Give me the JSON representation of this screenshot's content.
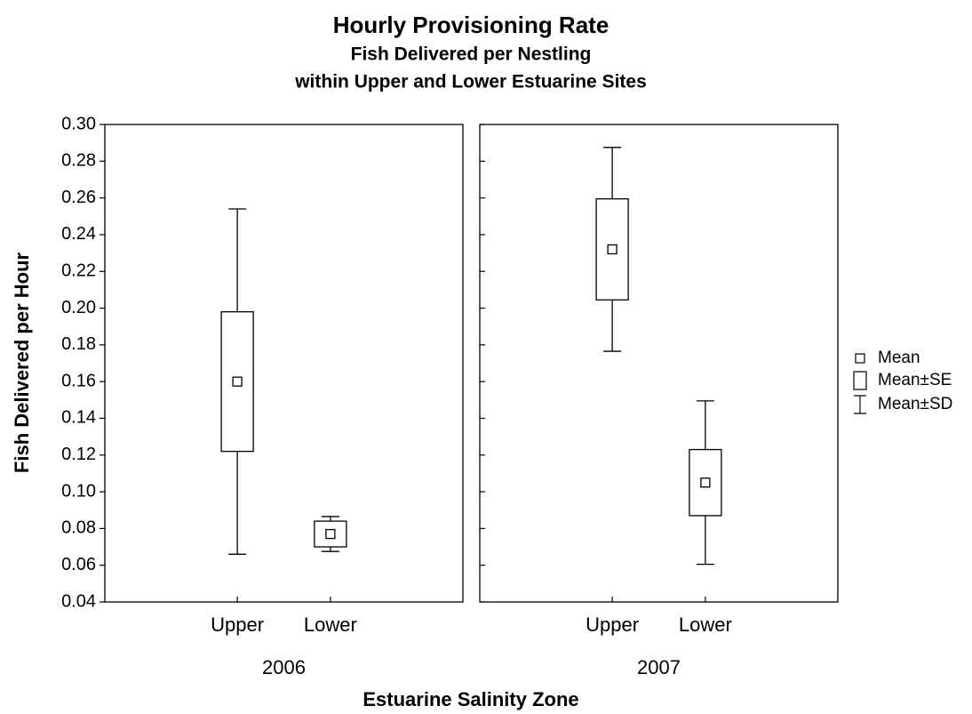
{
  "chart_data": {
    "type": "box",
    "title": "Hourly Provisioning Rate",
    "subtitle": [
      "Fish Delivered per Nestling",
      "within Upper and Lower Estuarine Sites"
    ],
    "xlabel": "Estuarine Salinity Zone",
    "ylabel": "Fish Delivered per Hour",
    "ylim": [
      0.04,
      0.3
    ],
    "yticks": [
      0.04,
      0.06,
      0.08,
      {
        "value": 0.1,
        "label": "0.10"
      },
      0.12,
      0.14,
      0.16,
      0.18,
      {
        "value": 0.2,
        "label": "0.20"
      },
      0.22,
      0.24,
      0.26,
      0.28,
      {
        "value": 0.3,
        "label": "0.30"
      }
    ],
    "color": "#000000",
    "legend": {
      "position": "right",
      "items": [
        "Mean",
        "Mean±SE",
        "Mean±SD"
      ]
    },
    "panels": [
      {
        "label": "2006",
        "boxes": [
          {
            "category": "Upper",
            "mean": 0.16,
            "se": 0.038,
            "sd": 0.094
          },
          {
            "category": "Lower",
            "mean": 0.077,
            "se": 0.007,
            "sd": 0.0095
          }
        ]
      },
      {
        "label": "2007",
        "boxes": [
          {
            "category": "Upper",
            "mean": 0.232,
            "se": 0.0275,
            "sd": 0.0555
          },
          {
            "category": "Lower",
            "mean": 0.105,
            "se": 0.018,
            "sd": 0.0445
          }
        ]
      }
    ]
  }
}
